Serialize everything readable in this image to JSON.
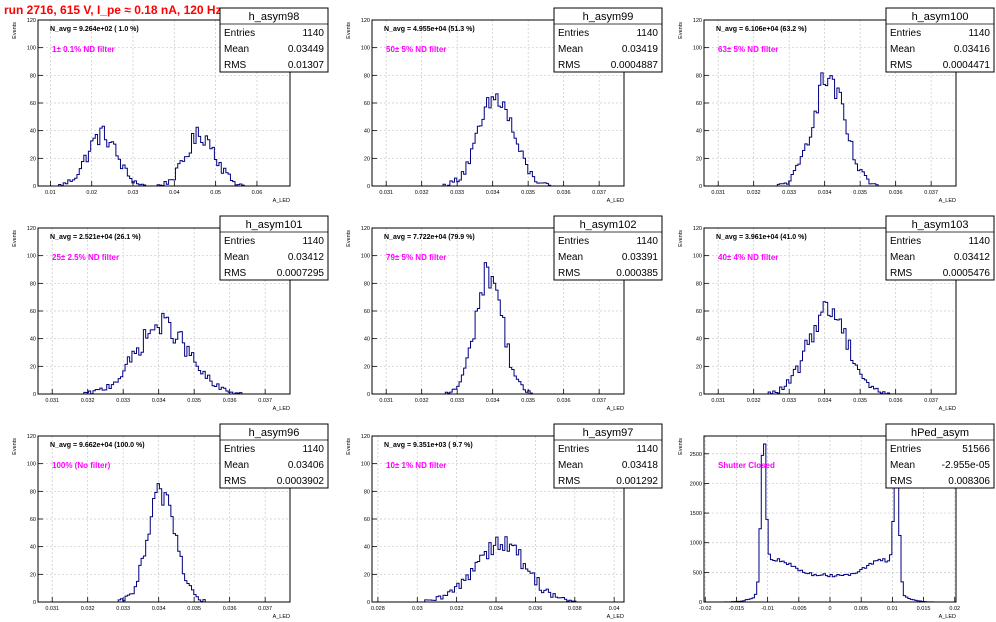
{
  "title": "run 2716,   615 V, I_pe ≈ 0.18 nA, 120 Hz",
  "stat_labels": {
    "entries": "Entries",
    "mean": "Mean",
    "rms": "RMS"
  },
  "colors": {
    "title": "#ff0000",
    "hist": "#000080",
    "filter": "#ff00ff",
    "grid": "#c8c8c8"
  },
  "chart_data": [
    {
      "type": "bar",
      "name": "h_asym98",
      "ylabel": "Events",
      "xlabel": "A_LED",
      "navg": "N_avg = 9.264e+02 ( 1.0 %)",
      "filter": "1± 0.1% ND filter",
      "stats": {
        "entries": "1140",
        "mean": "0.03449",
        "rms": "0.01307"
      },
      "xlim": [
        0.007,
        0.068
      ],
      "ylim": [
        0,
        120
      ],
      "xticks": [
        0.01,
        0.02,
        0.03,
        0.04,
        0.05,
        0.06
      ],
      "xtick_labels": [
        "0.01",
        "0.02",
        "0.03",
        "0.04",
        "0.05",
        "0.06"
      ],
      "yticks": [
        0,
        20,
        40,
        60,
        80,
        100,
        120
      ],
      "ytick_labels": [
        "0",
        "20",
        "40",
        "60",
        "80",
        "100",
        "120"
      ],
      "peaks": [
        {
          "mu": 0.0225,
          "sigma": 0.0036,
          "amp": 37
        },
        {
          "mu": 0.0465,
          "sigma": 0.0036,
          "amp": 37
        }
      ],
      "bins": 110
    },
    {
      "type": "bar",
      "name": "h_asym99",
      "ylabel": "Events",
      "xlabel": "A_LED",
      "navg": "N_avg = 4.955e+04 (51.3 %)",
      "filter": "50± 5% ND filter",
      "stats": {
        "entries": "1140",
        "mean": "0.03419",
        "rms": "0.0004887"
      },
      "xlim": [
        0.0306,
        0.0377
      ],
      "ylim": [
        0,
        120
      ],
      "xticks": [
        0.031,
        0.032,
        0.033,
        0.034,
        0.035,
        0.036,
        0.037
      ],
      "xtick_labels": [
        "0.031",
        "0.032",
        "0.033",
        "0.034",
        "0.035",
        "0.036",
        "0.037"
      ],
      "yticks": [
        0,
        20,
        40,
        60,
        80,
        100,
        120
      ],
      "ytick_labels": [
        "0",
        "20",
        "40",
        "60",
        "80",
        "100",
        "120"
      ],
      "peaks": [
        {
          "mu": 0.0341,
          "sigma": 0.00049,
          "amp": 63
        }
      ],
      "bins": 110
    },
    {
      "type": "bar",
      "name": "h_asym100",
      "ylabel": "Events",
      "xlabel": "A_LED",
      "navg": "N_avg = 6.106e+04 (63.2 %)",
      "filter": "63± 5% ND filter",
      "stats": {
        "entries": "1140",
        "mean": "0.03416",
        "rms": "0.0004471"
      },
      "xlim": [
        0.0306,
        0.0377
      ],
      "ylim": [
        0,
        120
      ],
      "xticks": [
        0.031,
        0.032,
        0.033,
        0.034,
        0.035,
        0.036,
        0.037
      ],
      "xtick_labels": [
        "0.031",
        "0.032",
        "0.033",
        "0.034",
        "0.035",
        "0.036",
        "0.037"
      ],
      "yticks": [
        0,
        20,
        40,
        60,
        80,
        100,
        120
      ],
      "ytick_labels": [
        "0",
        "20",
        "40",
        "60",
        "80",
        "100",
        "120"
      ],
      "peaks": [
        {
          "mu": 0.0341,
          "sigma": 0.00045,
          "amp": 78
        }
      ],
      "bins": 110
    },
    {
      "type": "bar",
      "name": "h_asym101",
      "ylabel": "Events",
      "xlabel": "A_LED",
      "navg": "N_avg = 2.521e+04 (26.1 %)",
      "filter": "25± 2.5% ND filter",
      "stats": {
        "entries": "1140",
        "mean": "0.03412",
        "rms": "0.0007295"
      },
      "xlim": [
        0.0306,
        0.0377
      ],
      "ylim": [
        0,
        120
      ],
      "xticks": [
        0.031,
        0.032,
        0.033,
        0.034,
        0.035,
        0.036,
        0.037
      ],
      "xtick_labels": [
        "0.031",
        "0.032",
        "0.033",
        "0.034",
        "0.035",
        "0.036",
        "0.037"
      ],
      "yticks": [
        0,
        20,
        40,
        60,
        80,
        100,
        120
      ],
      "ytick_labels": [
        "0",
        "20",
        "40",
        "60",
        "80",
        "100",
        "120"
      ],
      "peaks": [
        {
          "mu": 0.0341,
          "sigma": 0.00073,
          "amp": 50
        }
      ],
      "bins": 110
    },
    {
      "type": "bar",
      "name": "h_asym102",
      "ylabel": "Events",
      "xlabel": "A_LED",
      "navg": "N_avg = 7.722e+04 (79.9 %)",
      "filter": "79± 5% ND filter",
      "stats": {
        "entries": "1140",
        "mean": "0.03391",
        "rms": "0.000385"
      },
      "xlim": [
        0.0306,
        0.0377
      ],
      "ylim": [
        0,
        120
      ],
      "xticks": [
        0.031,
        0.032,
        0.033,
        0.034,
        0.035,
        0.036,
        0.037
      ],
      "xtick_labels": [
        "0.031",
        "0.032",
        "0.033",
        "0.034",
        "0.035",
        "0.036",
        "0.037"
      ],
      "yticks": [
        0,
        20,
        40,
        60,
        80,
        100,
        120
      ],
      "ytick_labels": [
        "0",
        "20",
        "40",
        "60",
        "80",
        "100",
        "120"
      ],
      "peaks": [
        {
          "mu": 0.0339,
          "sigma": 0.00038,
          "amp": 88
        }
      ],
      "bins": 110
    },
    {
      "type": "bar",
      "name": "h_asym103",
      "ylabel": "Events",
      "xlabel": "A_LED",
      "navg": "N_avg = 3.961e+04 (41.0 %)",
      "filter": "40± 4% ND filter",
      "stats": {
        "entries": "1140",
        "mean": "0.03412",
        "rms": "0.0005476"
      },
      "xlim": [
        0.0306,
        0.0377
      ],
      "ylim": [
        0,
        120
      ],
      "xticks": [
        0.031,
        0.032,
        0.033,
        0.034,
        0.035,
        0.036,
        0.037
      ],
      "xtick_labels": [
        "0.031",
        "0.032",
        "0.033",
        "0.034",
        "0.035",
        "0.036",
        "0.037"
      ],
      "yticks": [
        0,
        20,
        40,
        60,
        80,
        100,
        120
      ],
      "ytick_labels": [
        "0",
        "20",
        "40",
        "60",
        "80",
        "100",
        "120"
      ],
      "peaks": [
        {
          "mu": 0.0341,
          "sigma": 0.00055,
          "amp": 62
        }
      ],
      "bins": 110
    },
    {
      "type": "bar",
      "name": "h_asym96",
      "ylabel": "Events",
      "xlabel": "A_LED",
      "navg": "N_avg = 9.662e+04 (100.0 %)",
      "filter": "100% (No filter)",
      "stats": {
        "entries": "1140",
        "mean": "0.03406",
        "rms": "0.0003902"
      },
      "xlim": [
        0.0306,
        0.0377
      ],
      "ylim": [
        0,
        120
      ],
      "xticks": [
        0.031,
        0.032,
        0.033,
        0.034,
        0.035,
        0.036,
        0.037
      ],
      "xtick_labels": [
        "0.031",
        "0.032",
        "0.033",
        "0.034",
        "0.035",
        "0.036",
        "0.037"
      ],
      "yticks": [
        0,
        20,
        40,
        60,
        80,
        100,
        120
      ],
      "ytick_labels": [
        "0",
        "20",
        "40",
        "60",
        "80",
        "100",
        "120"
      ],
      "peaks": [
        {
          "mu": 0.0341,
          "sigma": 0.00039,
          "amp": 80
        }
      ],
      "bins": 110
    },
    {
      "type": "bar",
      "name": "h_asym97",
      "ylabel": "Events",
      "xlabel": "A_LED",
      "navg": "N_avg = 9.351e+03 ( 9.7 %)",
      "filter": "10± 1% ND filter",
      "stats": {
        "entries": "1140",
        "mean": "0.03418",
        "rms": "0.001292"
      },
      "xlim": [
        0.0277,
        0.0405
      ],
      "ylim": [
        0,
        120
      ],
      "xticks": [
        0.028,
        0.03,
        0.032,
        0.034,
        0.036,
        0.038,
        0.04
      ],
      "xtick_labels": [
        "0.028",
        "0.03",
        "0.032",
        "0.034",
        "0.036",
        "0.038",
        "0.04"
      ],
      "yticks": [
        0,
        20,
        40,
        60,
        80,
        100,
        120
      ],
      "ytick_labels": [
        "0",
        "20",
        "40",
        "60",
        "80",
        "100",
        "120"
      ],
      "peaks": [
        {
          "mu": 0.0342,
          "sigma": 0.0013,
          "amp": 43
        }
      ],
      "bins": 110
    },
    {
      "type": "bar",
      "name": "hPed_asym",
      "ylabel": "Events",
      "xlabel": "A_LED",
      "navg": "",
      "filter": "Shutter Closed",
      "stats": {
        "entries": "51566",
        "mean": "-2.955e-05",
        "rms": "0.008306"
      },
      "xlim": [
        -0.0202,
        0.0202
      ],
      "ylim": [
        0,
        2800
      ],
      "xticks": [
        -0.02,
        -0.015,
        -0.01,
        -0.005,
        0,
        0.005,
        0.01,
        0.015,
        0.02
      ],
      "xtick_labels": [
        "-0.02",
        "-0.015",
        "-0.01",
        "-0.005",
        "0",
        "0.005",
        "0.01",
        "0.015",
        "0.02"
      ],
      "yticks": [
        0,
        500,
        1000,
        1500,
        2000,
        2500
      ],
      "ytick_labels": [
        "0",
        "500",
        "1000",
        "1500",
        "2000",
        "2500"
      ],
      "peaks": [
        {
          "mu": -0.0107,
          "sigma": 0.0004,
          "amp": 2400
        },
        {
          "mu": 0.0107,
          "sigma": 0.0004,
          "amp": 2200
        },
        {
          "mu": -0.0085,
          "sigma": 0.0025,
          "amp": 250
        },
        {
          "mu": 0.0085,
          "sigma": 0.0025,
          "amp": 250
        }
      ],
      "baseline": {
        "from": -0.0105,
        "to": 0.0105,
        "level": 450
      },
      "bins": 110
    }
  ]
}
